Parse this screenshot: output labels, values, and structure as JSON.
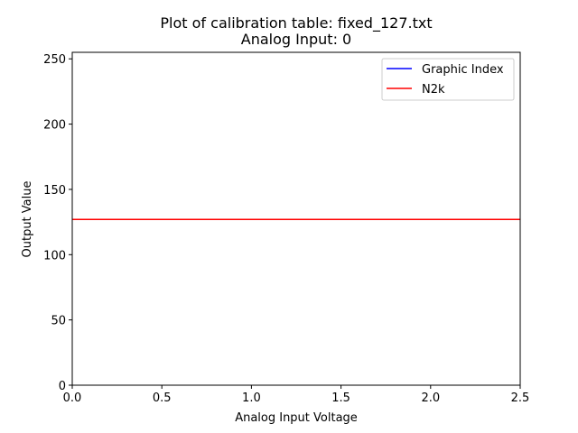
{
  "chart_data": {
    "type": "line",
    "title": "Plot of calibration table: fixed_127.txt",
    "subtitle": "Analog Input: 0",
    "xlabel": "Analog Input Voltage",
    "ylabel": "Output Value",
    "xlim": [
      0,
      2.5
    ],
    "ylim": [
      0,
      255
    ],
    "x_ticks": [
      0,
      0.5,
      1,
      1.5,
      2,
      2.5
    ],
    "x_tick_labels": [
      "0.0",
      "0.5",
      "1.0",
      "1.5",
      "2.0",
      "2.5"
    ],
    "y_ticks": [
      0,
      50,
      100,
      150,
      200,
      250
    ],
    "y_tick_labels": [
      "0",
      "50",
      "100",
      "150",
      "200",
      "250"
    ],
    "grid": false,
    "legend_position": "top-right",
    "series": [
      {
        "name": "Graphic Index",
        "color": "#0000ff",
        "x": [
          0,
          2.5
        ],
        "y": [
          127,
          127
        ]
      },
      {
        "name": "N2k",
        "color": "#ff0000",
        "x": [
          0,
          2.5
        ],
        "y": [
          127,
          127
        ]
      }
    ]
  }
}
